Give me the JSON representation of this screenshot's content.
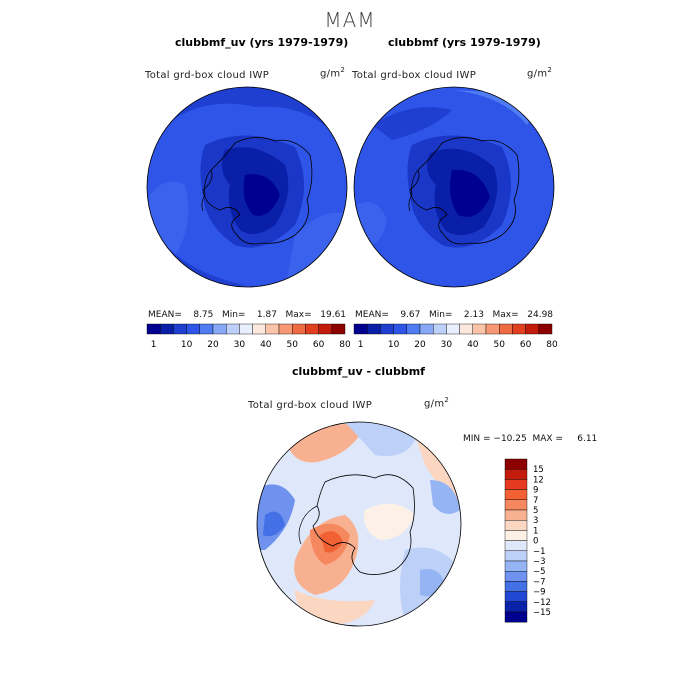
{
  "season": "MAM",
  "panels": [
    {
      "id": "uv",
      "title": "clubbmf_uv (yrs 1979-1979)",
      "variable": "Total grd-box cloud IWP",
      "units": "g/m",
      "units_power": "2",
      "stats": "MEAN=    8.75   Min=    1.87   Max=   19.61"
    },
    {
      "id": "mf",
      "title": "clubbmf (yrs 1979-1979)",
      "variable": "Total grd-box cloud IWP",
      "units": "g/m",
      "units_power": "2",
      "stats": "MEAN=    9.67   Min=    2.13   Max=   24.98"
    }
  ],
  "top_colorbar": {
    "labels": [
      "1",
      "10",
      "20",
      "30",
      "40",
      "50",
      "60",
      "80"
    ],
    "colors": [
      "#00008f",
      "#0a1fa8",
      "#1e3fd0",
      "#2f55e8",
      "#4f7cf2",
      "#86a8f6",
      "#bcd0fa",
      "#e8efff",
      "#fde8de",
      "#fbc3a8",
      "#f59873",
      "#ee6b43",
      "#e04020",
      "#c41c0c",
      "#8c0000"
    ]
  },
  "diff_panel": {
    "title": "clubbmf_uv - clubbmf",
    "variable": "Total grd-box cloud IWP",
    "units": "g/m",
    "units_power": "2",
    "stats": "MIN = −10.25  MAX =     6.11",
    "colorbar_labels": [
      "15",
      "12",
      "9",
      "7",
      "5",
      "3",
      "1",
      "0",
      "−1",
      "−3",
      "−5",
      "−7",
      "−9",
      "−12",
      "−15"
    ],
    "colorbar_colors": [
      "#8c0000",
      "#c41c0c",
      "#e63a1e",
      "#f26133",
      "#f5885e",
      "#f8b190",
      "#fbd6c0",
      "#fdf0e6",
      "#dfe8fb",
      "#bcd0f8",
      "#95b4f4",
      "#6e92ee",
      "#4470e6",
      "#2048d2",
      "#0a22a8",
      "#000090"
    ]
  }
}
